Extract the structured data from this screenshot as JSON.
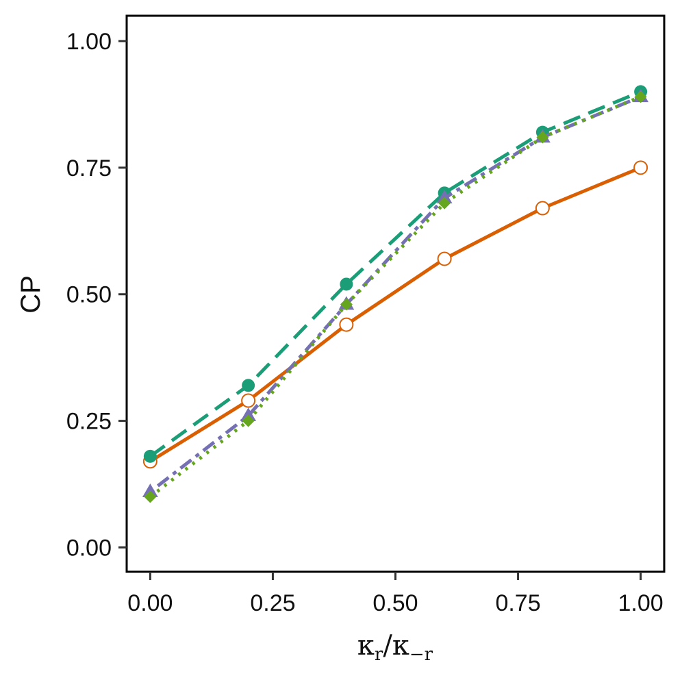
{
  "chart_data": {
    "type": "line",
    "title": "",
    "xlabel": {
      "kappa1": "κ",
      "sub1": "r",
      "slash": "/",
      "kappa2": "κ",
      "sub2": "−r"
    },
    "ylabel": "CP",
    "xlim": [
      -0.048,
      1.048
    ],
    "ylim": [
      -0.048,
      1.05
    ],
    "x_ticks": [
      0,
      0.25,
      0.5,
      0.75,
      1.0
    ],
    "x_tick_labels": [
      "0.00",
      "0.25",
      "0.50",
      "0.75",
      "1.00"
    ],
    "y_ticks": [
      0,
      0.25,
      0.5,
      0.75,
      1.0
    ],
    "y_tick_labels": [
      "0.00",
      "0.25",
      "0.50",
      "0.75",
      "1.00"
    ],
    "grid": false,
    "legend": "none",
    "x": [
      0,
      0.2,
      0.4,
      0.6,
      0.8,
      1.0
    ],
    "series": [
      {
        "values": [
          0.17,
          0.29,
          0.44,
          0.57,
          0.67,
          0.75
        ],
        "color": "#d95f02",
        "line": "solid",
        "marker": "open-circle"
      },
      {
        "values": [
          0.18,
          0.32,
          0.52,
          0.7,
          0.82,
          0.9
        ],
        "color": "#1b9e77",
        "line": "dashed",
        "marker": "filled-circle"
      },
      {
        "values": [
          0.11,
          0.26,
          0.48,
          0.69,
          0.81,
          0.89
        ],
        "color": "#7570b3",
        "line": "dash-dot",
        "marker": "filled-triangle"
      },
      {
        "values": [
          0.1,
          0.25,
          0.48,
          0.68,
          0.81,
          0.89
        ],
        "color": "#66a61e",
        "line": "dotted",
        "marker": "filled-diamond"
      }
    ]
  }
}
